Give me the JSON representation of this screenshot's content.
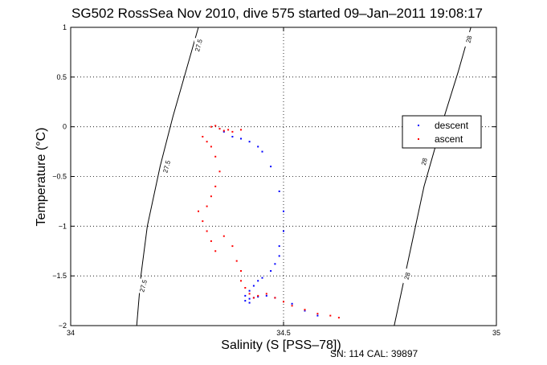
{
  "chart_data": {
    "type": "scatter",
    "title": "SG502 RossSea Nov 2010, dive 575 started 09–Jan–2011 19:08:17",
    "xlabel": "Salinity (S [PSS–78])",
    "ylabel": "Temperature (°C)",
    "xlim": [
      34,
      35
    ],
    "ylim": [
      -2,
      1
    ],
    "x_ticks": [
      "34",
      "34.5",
      "35"
    ],
    "y_ticks": [
      "1",
      "0.5",
      "0",
      "−0.5",
      "−1",
      "−1.5",
      "−2"
    ],
    "grid": true,
    "legend_position": "right",
    "footer": "SN: 114  CAL: 39897",
    "contours": [
      {
        "label": "27.5",
        "points": [
          [
            34.3,
            1.0
          ],
          [
            34.27,
            0.55
          ],
          [
            34.24,
            0.1
          ],
          [
            34.21,
            -0.4
          ],
          [
            34.18,
            -1.0
          ],
          [
            34.165,
            -1.5
          ],
          [
            34.155,
            -2.0
          ]
        ]
      },
      {
        "label": "28",
        "points": [
          [
            34.94,
            1.0
          ],
          [
            34.91,
            0.55
          ],
          [
            34.87,
            0.0
          ],
          [
            34.83,
            -0.6
          ],
          [
            34.8,
            -1.2
          ],
          [
            34.78,
            -1.6
          ],
          [
            34.76,
            -2.0
          ]
        ]
      }
    ],
    "contour_label_positions": [
      {
        "label": "27.5",
        "x": 34.3,
        "y": 0.82
      },
      {
        "label": "27.5",
        "x": 34.225,
        "y": -0.4
      },
      {
        "label": "27.5",
        "x": 34.17,
        "y": -1.6
      },
      {
        "label": "28",
        "x": 34.935,
        "y": 0.88
      },
      {
        "label": "28",
        "x": 34.83,
        "y": -0.35
      },
      {
        "label": "28",
        "x": 34.79,
        "y": -1.5
      }
    ],
    "series": [
      {
        "name": "descent",
        "color": "#0000ff",
        "x": [
          34.35,
          34.36,
          34.38,
          34.4,
          34.42,
          34.44,
          34.45,
          34.47,
          34.49,
          34.5,
          34.5,
          34.49,
          34.49,
          34.48,
          34.47,
          34.45,
          34.44,
          34.43,
          34.42,
          34.41,
          34.41,
          34.42,
          34.42,
          34.43,
          34.44,
          34.46,
          34.48,
          34.52,
          34.55,
          34.58
        ],
        "y": [
          -0.02,
          -0.05,
          -0.1,
          -0.12,
          -0.15,
          -0.2,
          -0.25,
          -0.4,
          -0.65,
          -0.85,
          -1.05,
          -1.2,
          -1.3,
          -1.38,
          -1.45,
          -1.52,
          -1.55,
          -1.6,
          -1.65,
          -1.7,
          -1.75,
          -1.77,
          -1.73,
          -1.72,
          -1.71,
          -1.7,
          -1.72,
          -1.78,
          -1.85,
          -1.9
        ]
      },
      {
        "name": "ascent",
        "color": "#ff0000",
        "x": [
          34.33,
          34.34,
          34.35,
          34.36,
          34.37,
          34.38,
          34.4,
          34.31,
          34.32,
          34.33,
          34.34,
          34.35,
          34.34,
          34.33,
          34.32,
          34.3,
          34.31,
          34.32,
          34.33,
          34.34,
          34.36,
          34.38,
          34.39,
          34.4,
          34.4,
          34.41,
          34.42,
          34.43,
          34.44,
          34.46,
          34.48,
          34.5,
          34.52,
          34.55,
          34.58,
          34.61,
          34.63
        ],
        "y": [
          0.0,
          0.01,
          -0.02,
          -0.04,
          -0.03,
          -0.05,
          -0.03,
          -0.1,
          -0.15,
          -0.2,
          -0.3,
          -0.45,
          -0.6,
          -0.7,
          -0.8,
          -0.85,
          -0.95,
          -1.05,
          -1.15,
          -1.25,
          -1.1,
          -1.2,
          -1.35,
          -1.45,
          -1.55,
          -1.62,
          -1.68,
          -1.72,
          -1.7,
          -1.68,
          -1.72,
          -1.76,
          -1.8,
          -1.84,
          -1.88,
          -1.9,
          -1.92
        ]
      }
    ]
  }
}
